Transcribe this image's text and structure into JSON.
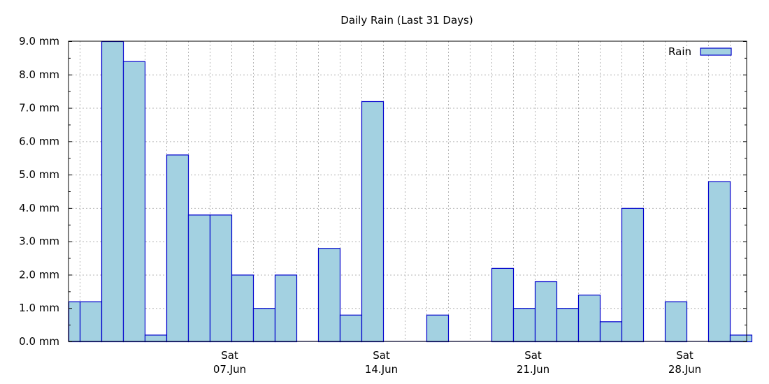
{
  "chart_data": {
    "type": "bar",
    "title": "Daily Rain (Last 31 Days)",
    "unit": "mm",
    "ylim": [
      0,
      9
    ],
    "ytick_step": 1,
    "ytick_labels": [
      "0.0 mm",
      "1.0 mm",
      "2.0 mm",
      "3.0 mm",
      "4.0 mm",
      "5.0 mm",
      "6.0 mm",
      "7.0 mm",
      "8.0 mm",
      "9.0 mm"
    ],
    "grid": true,
    "legend_position": "top-right",
    "colors": {
      "bar_fill": "#a3d1e1",
      "bar_stroke": "#0000cc"
    },
    "x_tick_labels": [
      {
        "index": 6,
        "weekday": "Sat",
        "date": "07.Jun"
      },
      {
        "index": 13,
        "weekday": "Sat",
        "date": "14.Jun"
      },
      {
        "index": 20,
        "weekday": "Sat",
        "date": "21.Jun"
      },
      {
        "index": 27,
        "weekday": "Sat",
        "date": "28.Jun"
      }
    ],
    "series": [
      {
        "name": "Rain",
        "values": [
          1.2,
          9.0,
          8.4,
          0.2,
          5.6,
          3.8,
          3.8,
          2.0,
          1.0,
          2.0,
          0.0,
          2.8,
          0.8,
          7.2,
          0.0,
          0.0,
          0.8,
          0.0,
          0.0,
          2.2,
          1.0,
          1.8,
          1.0,
          1.4,
          0.6,
          4.0,
          0.0,
          1.2,
          0.0,
          4.8,
          0.2
        ]
      }
    ]
  }
}
